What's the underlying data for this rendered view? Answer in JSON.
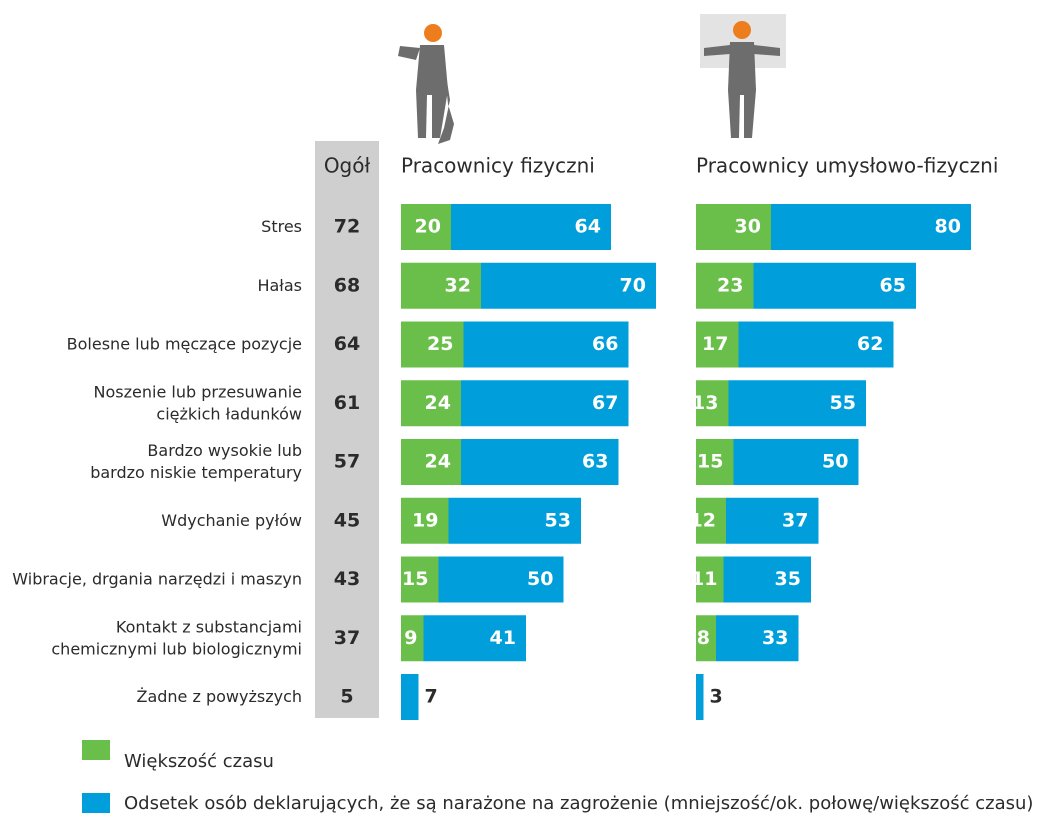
{
  "overall": {
    "title": "Ogół",
    "values": [
      72,
      68,
      64,
      61,
      57,
      45,
      43,
      37,
      5
    ]
  },
  "chart_data": [
    {
      "type": "bar",
      "title": "Pracownicy fizyczni",
      "categories": [
        [
          "Stres"
        ],
        [
          "Hałas"
        ],
        [
          "Bolesne lub męczące pozycje"
        ],
        [
          "Noszenie lub przesuwanie",
          "ciężkich ładunków"
        ],
        [
          "Bardzo wysokie lub",
          "bardzo niskie temperatury"
        ],
        [
          "Wdychanie pyłów"
        ],
        [
          "Wibracje, drgania narzędzi i maszyn"
        ],
        [
          "Kontakt z substancjami",
          "chemicznymi lub biologicznymi"
        ],
        [
          "Żadne z powyższych"
        ]
      ],
      "series": [
        {
          "name": "Większość czasu",
          "color": "#6abf4b",
          "values": [
            20,
            32,
            25,
            24,
            24,
            19,
            15,
            9,
            null
          ]
        },
        {
          "name": "Odsetek osób deklarujących, że są narażone na zagrożenie (mniejszość/ok. połowę/większość czasu)",
          "color": "#009fdb",
          "values": [
            64,
            70,
            66,
            67,
            63,
            53,
            50,
            41,
            7
          ]
        }
      ]
    },
    {
      "type": "bar",
      "title": "Pracownicy umysłowo-fizyczni",
      "series": [
        {
          "color": "#6abf4b",
          "values": [
            30,
            23,
            17,
            13,
            15,
            12,
            11,
            8,
            null
          ]
        },
        {
          "color": "#009fdb",
          "values": [
            80,
            65,
            62,
            55,
            50,
            37,
            35,
            33,
            3
          ]
        }
      ]
    }
  ]
}
